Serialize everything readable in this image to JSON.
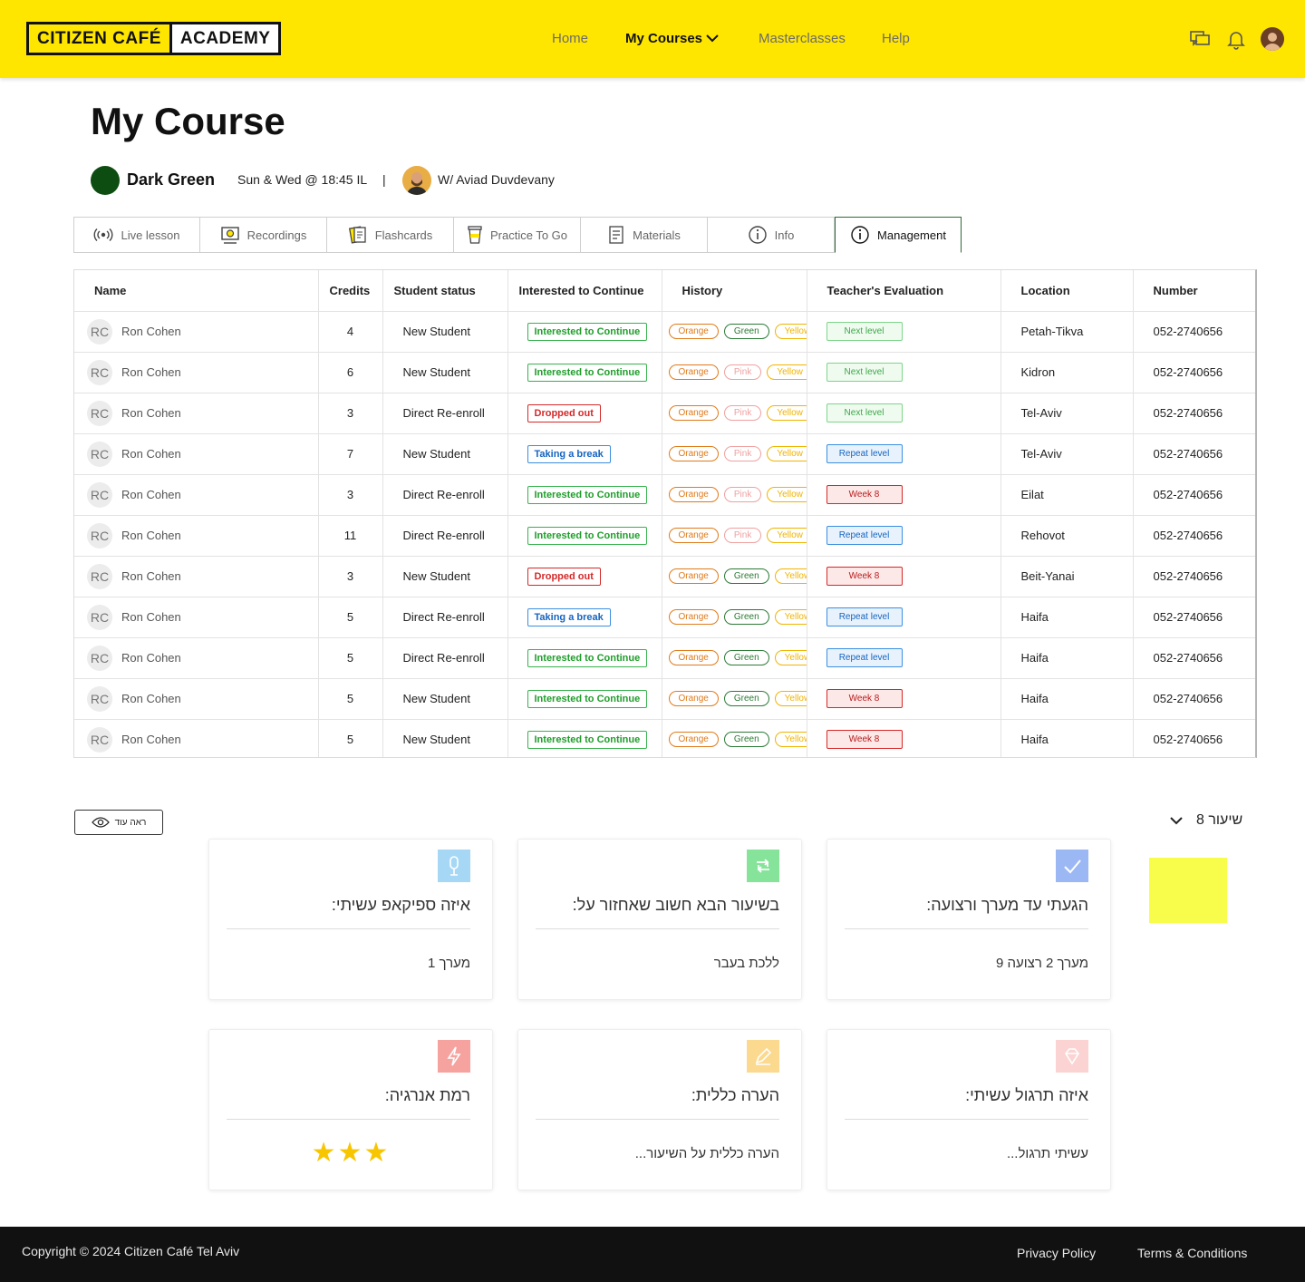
{
  "header": {
    "logo_left": "CITIZEN CAFÉ",
    "logo_right": "ACADEMY",
    "nav": {
      "home": "Home",
      "my_courses": "My Courses",
      "masterclasses": "Masterclasses",
      "help": "Help"
    }
  },
  "page": {
    "title": "My Course",
    "course_name": "Dark Green",
    "course_time": "Sun & Wed @ 18:45 IL",
    "separator": "|",
    "teacher": "W/ Aviad Duvdevany"
  },
  "tabs": [
    {
      "label": "Live lesson",
      "icon": "broadcast-icon"
    },
    {
      "label": "Recordings",
      "icon": "recordings-icon"
    },
    {
      "label": "Flashcards",
      "icon": "flashcards-icon"
    },
    {
      "label": "Practice To Go",
      "icon": "coffee-cup-icon"
    },
    {
      "label": "Materials",
      "icon": "document-list-icon"
    },
    {
      "label": "Info",
      "icon": "info-icon"
    },
    {
      "label": "Management",
      "icon": "info-icon",
      "active": true
    }
  ],
  "table": {
    "headers": [
      "Name",
      "Credits",
      "Student status",
      "Interested to Continue",
      "History",
      "Teacher's Evaluation",
      "Location",
      "Number"
    ],
    "rows": [
      {
        "initials": "RC",
        "name": "Ron Cohen",
        "credits": "4",
        "status": "New Student",
        "interest": "Interested to Continue",
        "interest_type": "green",
        "history": [
          [
            "Orange",
            "orange"
          ],
          [
            "Green",
            "green"
          ],
          [
            "Yellow",
            "yellow"
          ]
        ],
        "evaluation": "Next level",
        "eval_type": "next",
        "location": "Petah-Tikva",
        "number": "052-2740656"
      },
      {
        "initials": "RC",
        "name": "Ron Cohen",
        "credits": "6",
        "status": "New Student",
        "interest": "Interested to Continue",
        "interest_type": "green",
        "history": [
          [
            "Orange",
            "orange"
          ],
          [
            "Pink",
            "pink"
          ],
          [
            "Yellow",
            "yellow"
          ]
        ],
        "evaluation": "Next level",
        "eval_type": "next",
        "location": "Kidron",
        "number": "052-2740656"
      },
      {
        "initials": "RC",
        "name": "Ron Cohen",
        "credits": "3",
        "status": "Direct Re-enroll",
        "interest": "Dropped out",
        "interest_type": "red",
        "history": [
          [
            "Orange",
            "orange"
          ],
          [
            "Pink",
            "pink"
          ],
          [
            "Yellow",
            "yellow"
          ]
        ],
        "evaluation": "Next level",
        "eval_type": "next",
        "location": "Tel-Aviv",
        "number": "052-2740656"
      },
      {
        "initials": "RC",
        "name": "Ron Cohen",
        "credits": "7",
        "status": "New Student",
        "interest": "Taking a break",
        "interest_type": "blue",
        "history": [
          [
            "Orange",
            "orange"
          ],
          [
            "Pink",
            "pink"
          ],
          [
            "Yellow",
            "yellow"
          ]
        ],
        "evaluation": "Repeat level",
        "eval_type": "repeat",
        "location": "Tel-Aviv",
        "number": "052-2740656"
      },
      {
        "initials": "RC",
        "name": "Ron Cohen",
        "credits": "3",
        "status": "Direct Re-enroll",
        "interest": "Interested to Continue",
        "interest_type": "green",
        "history": [
          [
            "Orange",
            "orange"
          ],
          [
            "Pink",
            "pink"
          ],
          [
            "Yellow",
            "yellow"
          ]
        ],
        "evaluation": "Week 8",
        "eval_type": "week",
        "location": "Eilat",
        "number": "052-2740656"
      },
      {
        "initials": "RC",
        "name": "Ron Cohen",
        "credits": "11",
        "status": "Direct Re-enroll",
        "interest": "Interested to Continue",
        "interest_type": "green",
        "history": [
          [
            "Orange",
            "orange"
          ],
          [
            "Pink",
            "pink"
          ],
          [
            "Yellow",
            "yellow"
          ]
        ],
        "evaluation": "Repeat level",
        "eval_type": "repeat",
        "location": "Rehovot",
        "number": "052-2740656"
      },
      {
        "initials": "RC",
        "name": "Ron Cohen",
        "credits": "3",
        "status": "New Student",
        "interest": "Dropped out",
        "interest_type": "red",
        "history": [
          [
            "Orange",
            "orange"
          ],
          [
            "Green",
            "green"
          ],
          [
            "Yellow",
            "yellow"
          ]
        ],
        "evaluation": "Week 8",
        "eval_type": "week",
        "location": "Beit-Yanai",
        "number": "052-2740656"
      },
      {
        "initials": "RC",
        "name": "Ron Cohen",
        "credits": "5",
        "status": "Direct Re-enroll",
        "interest": "Taking a break",
        "interest_type": "blue",
        "history": [
          [
            "Orange",
            "orange"
          ],
          [
            "Green",
            "green"
          ],
          [
            "Yellow",
            "yellow"
          ]
        ],
        "evaluation": "Repeat level",
        "eval_type": "repeat",
        "location": "Haifa",
        "number": "052-2740656"
      },
      {
        "initials": "RC",
        "name": "Ron Cohen",
        "credits": "5",
        "status": "Direct Re-enroll",
        "interest": "Interested to Continue",
        "interest_type": "green",
        "history": [
          [
            "Orange",
            "orange"
          ],
          [
            "Green",
            "green"
          ],
          [
            "Yellow",
            "yellow"
          ]
        ],
        "evaluation": "Repeat level",
        "eval_type": "repeat",
        "location": "Haifa",
        "number": "052-2740656"
      },
      {
        "initials": "RC",
        "name": "Ron Cohen",
        "credits": "5",
        "status": "New Student",
        "interest": "Interested to Continue",
        "interest_type": "green",
        "history": [
          [
            "Orange",
            "orange"
          ],
          [
            "Green",
            "green"
          ],
          [
            "Yellow",
            "yellow"
          ]
        ],
        "evaluation": "Week 8",
        "eval_type": "week",
        "location": "Haifa",
        "number": "052-2740656"
      },
      {
        "initials": "RC",
        "name": "Ron Cohen",
        "credits": "5",
        "status": "New Student",
        "interest": "Interested to Continue",
        "interest_type": "green",
        "history": [
          [
            "Orange",
            "orange"
          ],
          [
            "Green",
            "green"
          ],
          [
            "Yellow",
            "yellow"
          ]
        ],
        "evaluation": "Week 8",
        "eval_type": "week",
        "location": "Haifa",
        "number": "052-2740656"
      }
    ]
  },
  "lower": {
    "see_more": "ראה עוד",
    "lesson_select": "שיעור 8",
    "cards": [
      {
        "title": "הגעתי עד מערך ורצועה:",
        "value": "מערך 2 רצועה 9",
        "icon": "check-icon",
        "color": "#9cb8f4"
      },
      {
        "title": "בשיעור הבא חשוב שאחזור על:",
        "value": "ללכת בעבר",
        "icon": "repeat-icon",
        "color": "#86e39a"
      },
      {
        "title": "איזה ספיקאפ עשיתי:",
        "value": "מערך 1",
        "icon": "microphone-icon",
        "color": "#a6d8f6"
      },
      {
        "title": "איזה תרגול עשיתי:",
        "value": "עשיתי תרגול...",
        "icon": "diamond-icon",
        "color": "#fbd3d3"
      },
      {
        "title": "הערה כללית:",
        "value": "הערה כללית על השיעור...",
        "icon": "pencil-icon",
        "color": "#fbd98e"
      },
      {
        "title": "רמת אנרגיה:",
        "stars": "★★★",
        "stars_count": 3,
        "icon": "lightning-icon",
        "color": "#f6a3a0"
      }
    ]
  },
  "footer": {
    "copyright": "Copyright © 2024 Citizen Café Tel Aviv",
    "privacy": "Privacy Policy",
    "terms": "Terms & Conditions"
  }
}
